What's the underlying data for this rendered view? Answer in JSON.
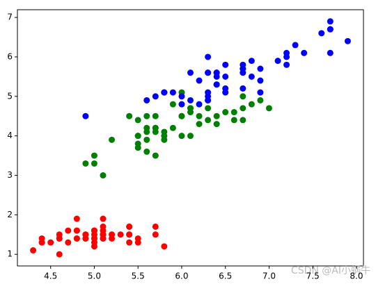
{
  "chart_data": {
    "type": "scatter",
    "xlim": [
      4.12,
      8.08
    ],
    "ylim": [
      0.705,
      7.195
    ],
    "xticks": [
      4.5,
      {
        "value": 5,
        "label": "5.0"
      },
      5.5,
      {
        "value": 6,
        "label": "6.0"
      },
      6.5,
      {
        "value": 7,
        "label": "7.0"
      },
      7.5,
      {
        "value": 8,
        "label": "8.0"
      }
    ],
    "yticks": [
      1,
      2,
      3,
      4,
      5,
      6,
      7
    ],
    "grid": false,
    "watermark": "CSDN @AI小蜗牛",
    "series": [
      {
        "color": "#ff0000",
        "x": [
          5.1,
          4.9,
          4.7,
          4.6,
          5.0,
          5.4,
          4.6,
          5.0,
          4.4,
          4.9,
          5.4,
          4.8,
          4.8,
          4.3,
          5.8,
          5.7,
          5.4,
          5.1,
          5.7,
          5.1,
          5.4,
          5.1,
          4.6,
          5.1,
          4.8,
          5.0,
          5.0,
          5.2,
          5.2,
          4.7,
          4.8,
          5.4,
          5.2,
          5.5,
          4.9,
          5.0,
          5.5,
          4.9,
          4.4,
          5.1,
          5.0,
          4.5,
          4.4,
          5.0,
          5.1,
          4.8,
          5.1,
          4.6,
          5.3,
          5.0
        ],
        "values": [
          1.4,
          1.4,
          1.3,
          1.5,
          1.4,
          1.7,
          1.4,
          1.5,
          1.4,
          1.5,
          1.5,
          1.6,
          1.4,
          1.1,
          1.2,
          1.5,
          1.3,
          1.4,
          1.7,
          1.5,
          1.7,
          1.5,
          1.0,
          1.7,
          1.9,
          1.6,
          1.6,
          1.5,
          1.4,
          1.6,
          1.6,
          1.5,
          1.5,
          1.4,
          1.5,
          1.2,
          1.3,
          1.4,
          1.3,
          1.5,
          1.3,
          1.3,
          1.3,
          1.6,
          1.9,
          1.4,
          1.6,
          1.4,
          1.5,
          1.4
        ]
      },
      {
        "color": "#008000",
        "x": [
          7.0,
          6.4,
          6.9,
          5.5,
          6.5,
          5.7,
          6.3,
          4.9,
          6.6,
          5.2,
          5.0,
          5.9,
          6.0,
          6.1,
          5.6,
          6.7,
          5.6,
          5.8,
          6.2,
          5.6,
          5.9,
          6.1,
          6.3,
          6.1,
          6.4,
          6.6,
          6.8,
          6.7,
          6.0,
          5.7,
          5.5,
          5.5,
          5.8,
          6.0,
          5.4,
          6.0,
          6.7,
          6.3,
          5.6,
          5.5,
          5.5,
          6.1,
          5.8,
          5.0,
          5.6,
          5.7,
          5.7,
          6.2,
          5.1,
          5.7
        ],
        "values": [
          4.7,
          4.5,
          4.9,
          4.0,
          4.6,
          4.5,
          4.7,
          3.3,
          4.6,
          3.9,
          3.5,
          4.2,
          4.0,
          4.7,
          3.6,
          4.4,
          4.5,
          4.1,
          4.5,
          3.9,
          4.8,
          4.0,
          4.9,
          4.7,
          4.3,
          4.4,
          4.8,
          5.0,
          4.5,
          3.5,
          3.8,
          3.7,
          3.9,
          5.1,
          4.5,
          4.5,
          4.7,
          4.4,
          4.1,
          4.0,
          4.4,
          4.6,
          4.0,
          3.3,
          4.2,
          4.2,
          4.2,
          4.3,
          3.0,
          4.1
        ]
      },
      {
        "color": "#0000ff",
        "x": [
          6.3,
          5.8,
          7.1,
          6.3,
          6.5,
          7.6,
          4.9,
          7.3,
          6.7,
          7.2,
          6.5,
          6.4,
          6.8,
          5.7,
          5.8,
          6.4,
          6.5,
          7.7,
          7.7,
          6.0,
          6.9,
          5.6,
          7.7,
          6.3,
          6.7,
          7.2,
          6.2,
          6.1,
          6.4,
          7.2,
          7.4,
          7.9,
          6.4,
          6.3,
          6.1,
          7.7,
          6.3,
          6.4,
          6.0,
          6.9,
          6.7,
          6.9,
          5.8,
          6.8,
          6.7,
          6.7,
          6.3,
          6.5,
          6.2,
          5.9
        ],
        "values": [
          6.0,
          5.1,
          5.9,
          5.6,
          5.8,
          6.6,
          4.5,
          6.3,
          5.8,
          6.1,
          5.1,
          5.3,
          5.5,
          5.0,
          5.1,
          5.3,
          5.5,
          6.7,
          6.9,
          5.0,
          5.7,
          4.9,
          6.7,
          4.9,
          5.7,
          6.0,
          4.8,
          4.9,
          5.6,
          5.8,
          6.1,
          6.4,
          5.6,
          5.1,
          5.6,
          6.1,
          5.6,
          5.5,
          4.8,
          5.4,
          5.6,
          5.1,
          5.1,
          5.9,
          5.7,
          5.2,
          5.0,
          5.2,
          5.4,
          5.1
        ]
      }
    ]
  }
}
